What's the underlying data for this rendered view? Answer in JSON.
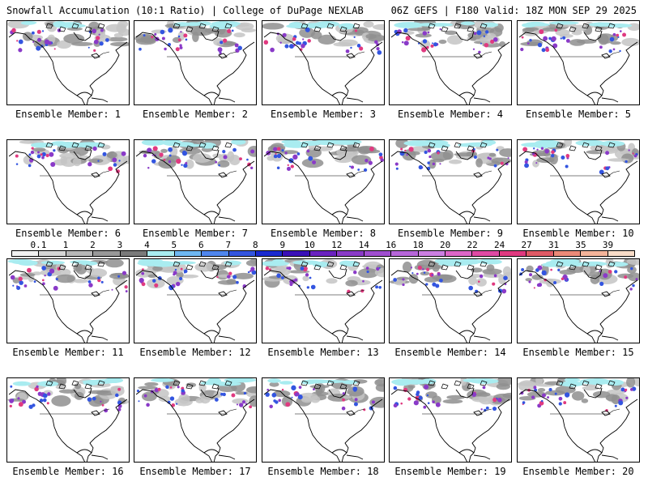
{
  "header": {
    "left_title": "Snowfall Accumulation (10:1 Ratio) | College of DuPage NEXLAB",
    "right_title": "06Z GEFS | F180 Valid: 18Z MON SEP 29 2025"
  },
  "panels": [
    {
      "label": "Ensemble Member: 1"
    },
    {
      "label": "Ensemble Member: 2"
    },
    {
      "label": "Ensemble Member: 3"
    },
    {
      "label": "Ensemble Member: 4"
    },
    {
      "label": "Ensemble Member: 5"
    },
    {
      "label": "Ensemble Member: 6"
    },
    {
      "label": "Ensemble Member: 7"
    },
    {
      "label": "Ensemble Member: 8"
    },
    {
      "label": "Ensemble Member: 9"
    },
    {
      "label": "Ensemble Member: 10"
    },
    {
      "label": "Ensemble Member: 11"
    },
    {
      "label": "Ensemble Member: 12"
    },
    {
      "label": "Ensemble Member: 13"
    },
    {
      "label": "Ensemble Member: 14"
    },
    {
      "label": "Ensemble Member: 15"
    },
    {
      "label": "Ensemble Member: 16"
    },
    {
      "label": "Ensemble Member: 17"
    },
    {
      "label": "Ensemble Member: 18"
    },
    {
      "label": "Ensemble Member: 19"
    },
    {
      "label": "Ensemble Member: 20"
    }
  ],
  "colorbar": {
    "ticks": [
      "0.1",
      "1",
      "2",
      "3",
      "4",
      "5",
      "6",
      "7",
      "8",
      "9",
      "10",
      "12",
      "14",
      "16",
      "18",
      "20",
      "22",
      "24",
      "27",
      "31",
      "35",
      "39"
    ],
    "colors": [
      "#f2f2f2",
      "#d6d6d6",
      "#b8b8b8",
      "#999999",
      "#7a7a7a",
      "#a9ecf0",
      "#6fb8f2",
      "#4f86ee",
      "#3355e0",
      "#1a2ad0",
      "#3a10b8",
      "#6a22c0",
      "#8a3ac8",
      "#a04ed0",
      "#b766da",
      "#cc7fe2",
      "#dd66c8",
      "#e04aa4",
      "#e03a80",
      "#e05a66",
      "#ec8a78",
      "#f4b49a",
      "#f8dcc8"
    ]
  },
  "map_colors": {
    "ocean": "#ffffff",
    "light_snow": "#c4c4c4",
    "moderate_snow": "#8f8f8f",
    "cyan": "#a9ecf0",
    "blue": "#3355e0",
    "purple": "#8a3ac8",
    "magenta": "#e03a80"
  }
}
